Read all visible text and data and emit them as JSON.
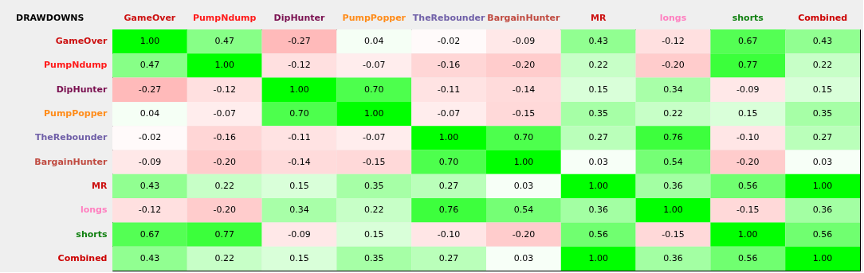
{
  "chart_data": {
    "type": "heatmap",
    "title": "DRAWDOWNS",
    "categories": [
      "GameOver",
      "PumpNdump",
      "DipHunter",
      "PumpPopper",
      "TheRebounder",
      "BargainHunter",
      "MR",
      "longs",
      "shorts",
      "Combined"
    ],
    "y_categories": [
      "GameOver",
      "PumpNdump",
      "DipHunter",
      "PumpPopper",
      "TheRebounder",
      "BargainHunter",
      "MR",
      "longs",
      "shorts",
      "Combined"
    ],
    "cells": [
      [
        1.0,
        0.47,
        -0.27,
        0.04,
        -0.02,
        -0.09,
        0.43,
        -0.12,
        0.67,
        0.43
      ],
      [
        0.47,
        1.0,
        -0.12,
        -0.07,
        -0.16,
        -0.2,
        0.22,
        -0.2,
        0.77,
        0.22
      ],
      [
        -0.27,
        -0.12,
        1.0,
        0.7,
        -0.11,
        -0.14,
        0.15,
        0.34,
        -0.09,
        0.15
      ],
      [
        0.04,
        -0.07,
        0.7,
        1.0,
        -0.07,
        -0.15,
        0.35,
        0.22,
        0.15,
        0.35
      ],
      [
        -0.02,
        -0.16,
        -0.11,
        -0.07,
        1.0,
        0.7,
        0.27,
        0.76,
        -0.1,
        0.27
      ],
      [
        -0.09,
        -0.2,
        -0.14,
        -0.15,
        0.7,
        1.0,
        0.03,
        0.54,
        -0.2,
        0.03
      ],
      [
        0.43,
        0.22,
        0.15,
        0.35,
        0.27,
        0.03,
        1.0,
        0.36,
        0.56,
        1.0
      ],
      [
        -0.12,
        -0.2,
        0.34,
        0.22,
        0.76,
        0.54,
        0.36,
        1.0,
        -0.15,
        0.36
      ],
      [
        0.67,
        0.77,
        -0.09,
        0.15,
        -0.1,
        -0.2,
        0.56,
        -0.15,
        1.0,
        0.56
      ],
      [
        0.43,
        0.22,
        0.15,
        0.35,
        0.27,
        0.03,
        1.0,
        0.36,
        0.56,
        1.0
      ]
    ],
    "cell_labels": [
      [
        "1.00",
        "0.47",
        "-0.27",
        "0.04",
        "-0.02",
        "-0.09",
        "0.43",
        "-0.12",
        "0.67",
        "0.43"
      ],
      [
        "0.47",
        "1.00",
        "-0.12",
        "-0.07",
        "-0.16",
        "-0.20",
        "0.22",
        "-0.20",
        "0.77",
        "0.22"
      ],
      [
        "-0.27",
        "-0.12",
        "1.00",
        "0.70",
        "-0.11",
        "-0.14",
        "0.15",
        "0.34",
        "-0.09",
        "0.15"
      ],
      [
        "0.04",
        "-0.07",
        "0.70",
        "1.00",
        "-0.07",
        "-0.15",
        "0.35",
        "0.22",
        "0.15",
        "0.35"
      ],
      [
        "-0.02",
        "-0.16",
        "-0.11",
        "-0.07",
        "1.00",
        "0.70",
        "0.27",
        "0.76",
        "-0.10",
        "0.27"
      ],
      [
        "-0.09",
        "-0.20",
        "-0.14",
        "-0.15",
        "0.70",
        "1.00",
        "0.03",
        "0.54",
        "-0.20",
        "0.03"
      ],
      [
        "0.43",
        "0.22",
        "0.15",
        "0.35",
        "0.27",
        "0.03",
        "1.00",
        "0.36",
        "0.56",
        "1.00"
      ],
      [
        "-0.12",
        "-0.20",
        "0.34",
        "0.22",
        "0.76",
        "0.54",
        "0.36",
        "1.00",
        "-0.15",
        "0.36"
      ],
      [
        "0.67",
        "0.77",
        "-0.09",
        "0.15",
        "-0.10",
        "-0.20",
        "0.56",
        "-0.15",
        "1.00",
        "0.56"
      ],
      [
        "0.43",
        "0.22",
        "0.15",
        "0.35",
        "0.27",
        "0.03",
        "1.00",
        "0.36",
        "0.56",
        "1.00"
      ]
    ]
  }
}
